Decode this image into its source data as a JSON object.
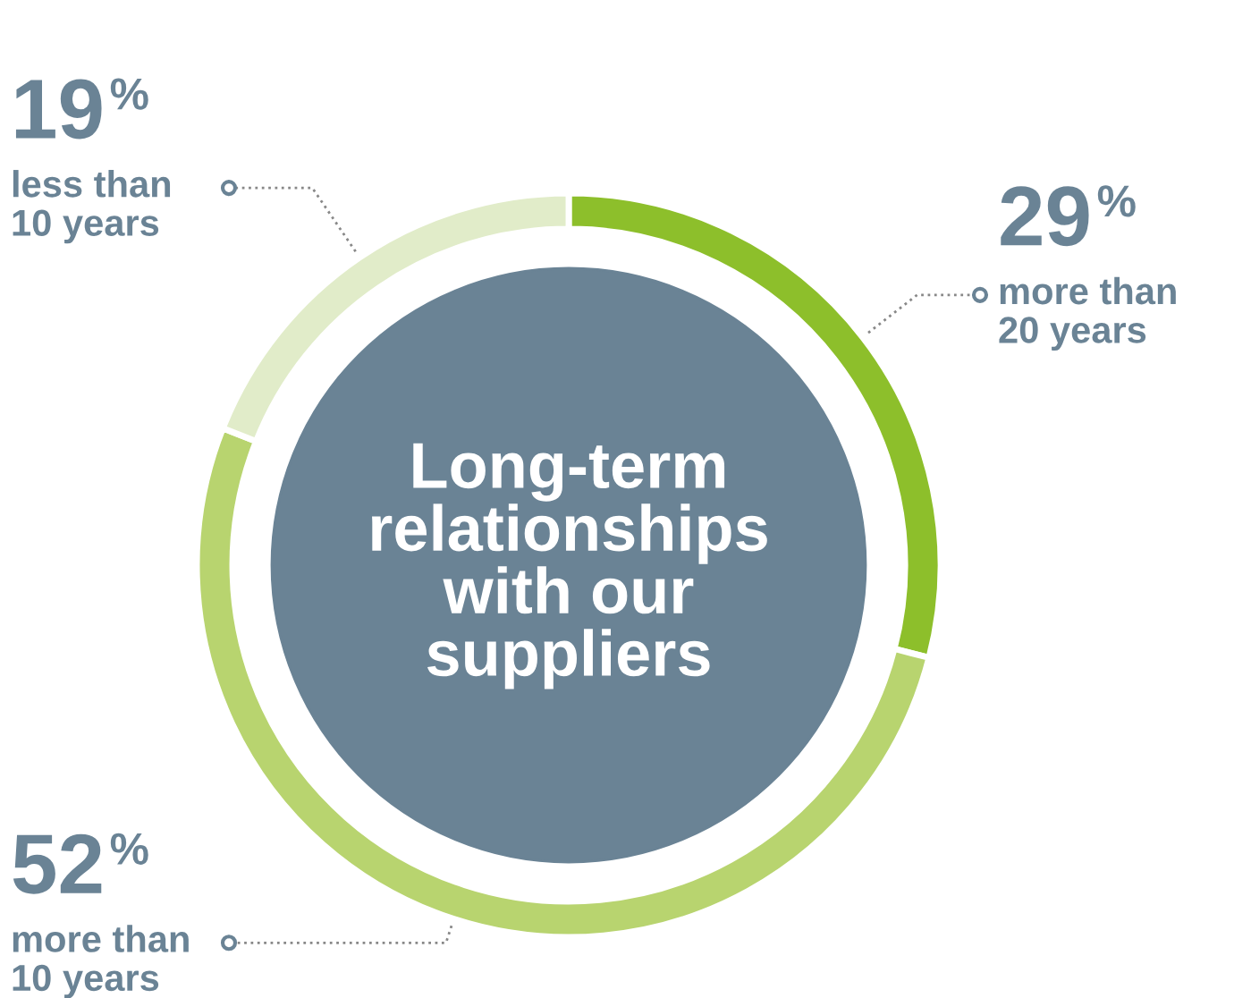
{
  "chart_data": {
    "type": "donut",
    "title": "Long-term\nrelationships\nwith our\nsuppliers",
    "categories": [
      "more than\n20 years",
      "more than\n10 years",
      "less than\n10 years"
    ],
    "values": [
      29,
      52,
      19
    ],
    "colors": [
      "#8dbf2b",
      "#b8d46f",
      "#e1ecc9"
    ],
    "value_labels": [
      "29%",
      "52%",
      "19%"
    ]
  }
}
